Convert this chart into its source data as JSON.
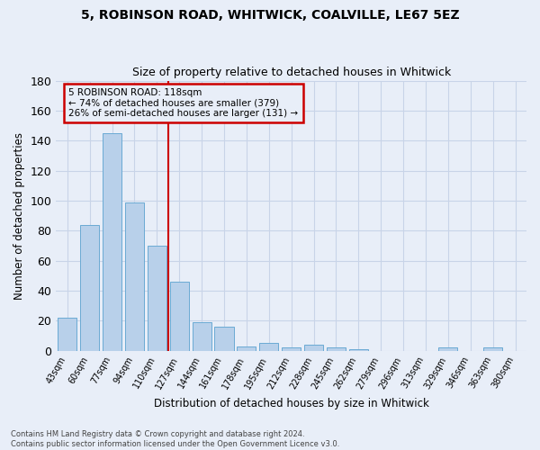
{
  "title1": "5, ROBINSON ROAD, WHITWICK, COALVILLE, LE67 5EZ",
  "title2": "Size of property relative to detached houses in Whitwick",
  "xlabel": "Distribution of detached houses by size in Whitwick",
  "ylabel": "Number of detached properties",
  "categories": [
    "43sqm",
    "60sqm",
    "77sqm",
    "94sqm",
    "110sqm",
    "127sqm",
    "144sqm",
    "161sqm",
    "178sqm",
    "195sqm",
    "212sqm",
    "228sqm",
    "245sqm",
    "262sqm",
    "279sqm",
    "296sqm",
    "313sqm",
    "329sqm",
    "346sqm",
    "363sqm",
    "380sqm"
  ],
  "values": [
    22,
    84,
    145,
    99,
    70,
    46,
    19,
    16,
    3,
    5,
    2,
    4,
    2,
    1,
    0,
    0,
    0,
    2,
    0,
    2,
    0
  ],
  "bar_color": "#b8d0ea",
  "bar_edge_color": "#6aaad4",
  "vline_color": "#cc0000",
  "annotation_text": "5 ROBINSON ROAD: 118sqm\n← 74% of detached houses are smaller (379)\n26% of semi-detached houses are larger (131) →",
  "annotation_box_color": "#cc0000",
  "ylim": [
    0,
    180
  ],
  "yticks": [
    0,
    20,
    40,
    60,
    80,
    100,
    120,
    140,
    160,
    180
  ],
  "grid_color": "#c8d4e8",
  "bg_color": "#e8eef8",
  "footnote": "Contains HM Land Registry data © Crown copyright and database right 2024.\nContains public sector information licensed under the Open Government Licence v3.0."
}
